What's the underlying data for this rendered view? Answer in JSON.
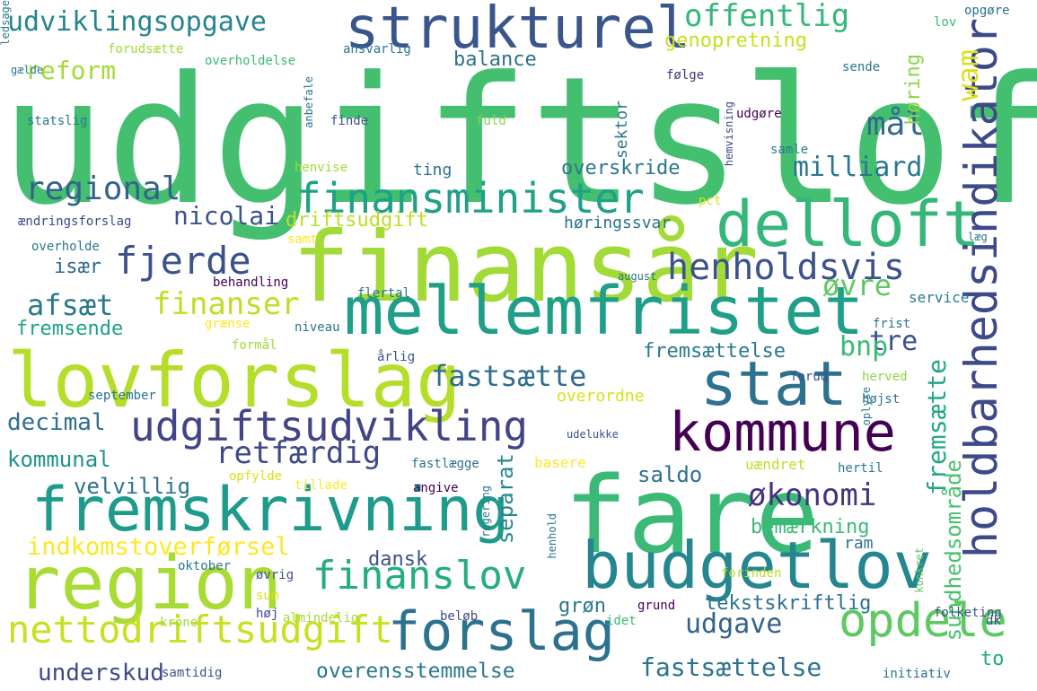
{
  "words": [
    {
      "text": "udgiftsloft",
      "color": "#44bf70",
      "rot": false
    },
    {
      "text": "finansår",
      "color": "#a2da37",
      "rot": false
    },
    {
      "text": "fare",
      "color": "#3aba76",
      "rot": false
    },
    {
      "text": "region",
      "color": "#a8db34",
      "rot": false
    },
    {
      "text": "lovforslag",
      "color": "#b5de2b",
      "rot": false
    },
    {
      "text": "mellemfristet",
      "color": "#1f9f88",
      "rot": false
    },
    {
      "text": "fremskrivning",
      "color": "#1e9b8a",
      "rot": false
    },
    {
      "text": "budgetlov",
      "color": "#24868e",
      "rot": false
    },
    {
      "text": "forslag",
      "color": "#2c728e",
      "rot": false
    },
    {
      "text": "strukturel",
      "color": "#39558c",
      "rot": false
    },
    {
      "text": "delloft",
      "color": "#35b779",
      "rot": false
    },
    {
      "text": "stat",
      "color": "#2c718e",
      "rot": false
    },
    {
      "text": "kommune",
      "color": "#440154",
      "rot": false
    },
    {
      "text": "holdbarhedsindikator",
      "color": "#3e4989",
      "rot": true
    },
    {
      "text": "udgiftsudvikling",
      "color": "#414487",
      "rot": false
    },
    {
      "text": "finansminister",
      "color": "#1fa188",
      "rot": false
    },
    {
      "text": "henholdsvis",
      "color": "#3b528b",
      "rot": false
    },
    {
      "text": "finanslov",
      "color": "#25ac82",
      "rot": false
    },
    {
      "text": "opdele",
      "color": "#5ec962",
      "rot": false
    },
    {
      "text": "nettodriftsudgift",
      "color": "#c8e020",
      "rot": false
    },
    {
      "text": "udviklingsopgave",
      "color": "#25848e",
      "rot": false
    },
    {
      "text": "offentlig",
      "color": "#35b779",
      "rot": false
    },
    {
      "text": "fjerde",
      "color": "#3b528b",
      "rot": false
    },
    {
      "text": "finanser",
      "color": "#bddf26",
      "rot": false
    },
    {
      "text": "regional",
      "color": "#33638d",
      "rot": false
    },
    {
      "text": "milliard",
      "color": "#2a788e",
      "rot": false
    },
    {
      "text": "mål",
      "color": "#31688e",
      "rot": false
    },
    {
      "text": "økonomi",
      "color": "#46327e",
      "rot": false
    },
    {
      "text": "retfærdig",
      "color": "#3e4a89",
      "rot": false
    },
    {
      "text": "fastsætte",
      "color": "#2e6e8e",
      "rot": false
    },
    {
      "text": "indkomstoverførsel",
      "color": "#fde725",
      "rot": false
    },
    {
      "text": "udgave",
      "color": "#33638d",
      "rot": false
    },
    {
      "text": "fastsættelse",
      "color": "#2c728e",
      "rot": false
    },
    {
      "text": "afsæt",
      "color": "#2a788e",
      "rot": false
    },
    {
      "text": "tre",
      "color": "#3b528b",
      "rot": false
    },
    {
      "text": "bnp",
      "color": "#3aba76",
      "rot": false
    },
    {
      "text": "øvre",
      "color": "#5ec962",
      "rot": false
    },
    {
      "text": "fremsætte",
      "color": "#22a785",
      "rot": true
    },
    {
      "text": "sundhedsområde",
      "color": "#48c16e",
      "rot": true
    },
    {
      "text": "wam",
      "color": "#dde318",
      "rot": true
    },
    {
      "text": "høring",
      "color": "#8bd646",
      "rot": true
    },
    {
      "text": "nicolai",
      "color": "#3b528b",
      "rot": false
    },
    {
      "text": "decimal",
      "color": "#2e6e8e",
      "rot": false
    },
    {
      "text": "kommunal",
      "color": "#20928c",
      "rot": false
    },
    {
      "text": "underskud",
      "color": "#3e4a89",
      "rot": false
    },
    {
      "text": "overensstemmelse",
      "color": "#2a788e",
      "rot": false
    },
    {
      "text": "velvillig",
      "color": "#2c728e",
      "rot": false
    },
    {
      "text": "saldo",
      "color": "#2c718e",
      "rot": false
    },
    {
      "text": "separat",
      "color": "#24868e",
      "rot": true
    },
    {
      "text": "dansk",
      "color": "#3b528b",
      "rot": false
    },
    {
      "text": "grøn",
      "color": "#2a788e",
      "rot": false
    },
    {
      "text": "genopretning",
      "color": "#c8e020",
      "rot": false
    },
    {
      "text": "reform",
      "color": "#a2da37",
      "rot": false
    },
    {
      "text": "balance",
      "color": "#2c728e",
      "rot": false
    },
    {
      "text": "overskride",
      "color": "#2a788e",
      "rot": false
    },
    {
      "text": "driftsudgift",
      "color": "#bddf26",
      "rot": false
    },
    {
      "text": "høringssvar",
      "color": "#2c728e",
      "rot": false
    },
    {
      "text": "fremsættelse",
      "color": "#2a788e",
      "rot": false
    },
    {
      "text": "bemærkning",
      "color": "#3aba76",
      "rot": false
    },
    {
      "text": "tekstskriftlig",
      "color": "#2c728e",
      "rot": false
    },
    {
      "text": "overordne",
      "color": "#d8e219",
      "rot": false
    },
    {
      "text": "fremsende",
      "color": "#1fa188",
      "rot": false
    },
    {
      "text": "især",
      "color": "#31688e",
      "rot": false
    },
    {
      "text": "ting",
      "color": "#2c728e",
      "rot": false
    },
    {
      "text": "to",
      "color": "#22a785",
      "rot": false
    },
    {
      "text": "ram",
      "color": "#2c728e",
      "rot": false
    },
    {
      "text": "sektor",
      "color": "#2a788e",
      "rot": true
    },
    {
      "text": "følge",
      "color": "#46327e",
      "rot": false
    },
    {
      "text": "basere",
      "color": "#fde725",
      "rot": false
    },
    {
      "text": "udelukke",
      "color": "#3b528b",
      "rot": false
    },
    {
      "text": "uændret",
      "color": "#bddf26",
      "rot": false
    },
    {
      "text": "fastlægge",
      "color": "#2c728e",
      "rot": false
    },
    {
      "text": "opfylde",
      "color": "#d8e219",
      "rot": false
    },
    {
      "text": "tillade",
      "color": "#fde725",
      "rot": false
    },
    {
      "text": "angive",
      "color": "#440154",
      "rot": false
    },
    {
      "text": "grænse",
      "color": "#fde725",
      "rot": false
    },
    {
      "text": "niveau",
      "color": "#2c728e",
      "rot": false
    },
    {
      "text": "service",
      "color": "#2a788e",
      "rot": false
    },
    {
      "text": "flertal",
      "color": "#2c728e",
      "rot": false
    },
    {
      "text": "behandling",
      "color": "#440154",
      "rot": false
    },
    {
      "text": "august",
      "color": "#2c728e",
      "rot": false
    },
    {
      "text": "frist",
      "color": "#2c728e",
      "rot": false
    },
    {
      "text": "herved",
      "color": "#8bd646",
      "rot": false
    },
    {
      "text": "højst",
      "color": "#2c728e",
      "rot": false
    },
    {
      "text": "forud",
      "color": "#3b528b",
      "rot": false
    },
    {
      "text": "årlig",
      "color": "#3b528b",
      "rot": false
    },
    {
      "text": "formål",
      "color": "#a2da37",
      "rot": false
    },
    {
      "text": "september",
      "color": "#2c728e",
      "rot": false
    },
    {
      "text": "hertil",
      "color": "#2a788e",
      "rot": false
    },
    {
      "text": "oplyse",
      "color": "#2a788e",
      "rot": true
    },
    {
      "text": "forinden",
      "color": "#b5de2b",
      "rot": false
    },
    {
      "text": "oktober",
      "color": "#2a788e",
      "rot": false
    },
    {
      "text": "øvrig",
      "color": "#3b528b",
      "rot": false
    },
    {
      "text": "sum",
      "color": "#d8e219",
      "rot": false
    },
    {
      "text": "høj",
      "color": "#3e4a89",
      "rot": false
    },
    {
      "text": "krone",
      "color": "#a2da37",
      "rot": false
    },
    {
      "text": "almindelig",
      "color": "#a2da37",
      "rot": false
    },
    {
      "text": "beløb",
      "color": "#3e4a89",
      "rot": false
    },
    {
      "text": "idet",
      "color": "#3aba76",
      "rot": false
    },
    {
      "text": "grund",
      "color": "#440154",
      "rot": false
    },
    {
      "text": "henhold",
      "color": "#2c728e",
      "rot": true
    },
    {
      "text": "regering",
      "color": "#2a788e",
      "rot": true
    },
    {
      "text": "konkret",
      "color": "#5ec962",
      "rot": true
    },
    {
      "text": "folketing",
      "color": "#3b528b",
      "rot": false
    },
    {
      "text": "dk",
      "color": "#3b528b",
      "rot": false
    },
    {
      "text": "initiativ",
      "color": "#2c728e",
      "rot": false
    },
    {
      "text": "samtidig",
      "color": "#3b528b",
      "rot": false
    },
    {
      "text": "lov",
      "color": "#3aba76",
      "rot": false
    },
    {
      "text": "opgøre",
      "color": "#2c728e",
      "rot": false
    },
    {
      "text": "forudsætte",
      "color": "#a2da37",
      "rot": false
    },
    {
      "text": "overholdelse",
      "color": "#3aba76",
      "rot": false
    },
    {
      "text": "ansvarlig",
      "color": "#2a788e",
      "rot": false
    },
    {
      "text": "sende",
      "color": "#2a788e",
      "rot": false
    },
    {
      "text": "anbefale",
      "color": "#2c728e",
      "rot": true
    },
    {
      "text": "finde",
      "color": "#3b528b",
      "rot": false
    },
    {
      "text": "fuld",
      "color": "#8bd646",
      "rot": false
    },
    {
      "text": "udgøre",
      "color": "#440154",
      "rot": false
    },
    {
      "text": "samle",
      "color": "#2a788e",
      "rot": false
    },
    {
      "text": "hemvisning",
      "color": "#3e4a89",
      "rot": true
    },
    {
      "text": "henvise",
      "color": "#a2da37",
      "rot": false
    },
    {
      "text": "pct",
      "color": "#d8e219",
      "rot": false
    },
    {
      "text": "læg",
      "color": "#2a788e",
      "rot": false
    },
    {
      "text": "samt",
      "color": "#fde725",
      "rot": false
    },
    {
      "text": "overholde",
      "color": "#2a788e",
      "rot": false
    },
    {
      "text": "ændringsforslag",
      "color": "#3e4a89",
      "rot": false
    },
    {
      "text": "statslig",
      "color": "#2a788e",
      "rot": false
    },
    {
      "text": "gælde",
      "color": "#2a788e",
      "rot": false
    },
    {
      "text": "ledsage",
      "color": "#2a788e",
      "rot": true
    }
  ]
}
